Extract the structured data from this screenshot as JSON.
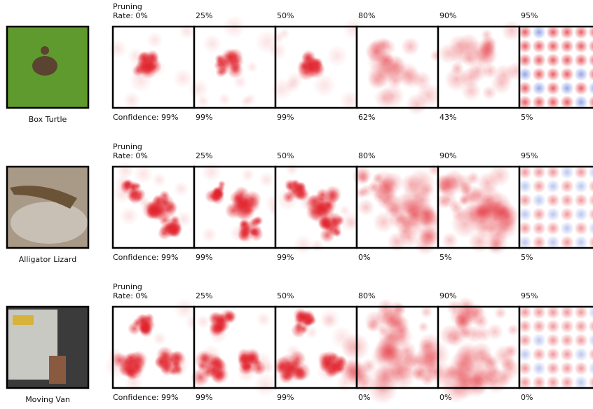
{
  "rows": [
    {
      "label": "Box Turtle",
      "rate_heading": "Pruning",
      "rates": [
        "Rate: 0%",
        "25%",
        "50%",
        "80%",
        "90%",
        "95%"
      ],
      "confidences": [
        "Confidence: 99%",
        "99%",
        "99%",
        "62%",
        "43%",
        "5%"
      ]
    },
    {
      "label": "Alligator Lizard",
      "rate_heading": "Pruning",
      "rates": [
        "Rate: 0%",
        "25%",
        "50%",
        "80%",
        "90%",
        "95%"
      ],
      "confidences": [
        "Confidence: 99%",
        "99%",
        "99%",
        "0%",
        "5%",
        "5%"
      ]
    },
    {
      "label": "Moving Van",
      "rate_heading": "Pruning",
      "rates": [
        "Rate: 0%",
        "25%",
        "50%",
        "80%",
        "90%",
        "95%"
      ],
      "confidences": [
        "Confidence: 99%",
        "99%",
        "99%",
        "0%",
        "0%",
        "0%"
      ]
    }
  ]
}
